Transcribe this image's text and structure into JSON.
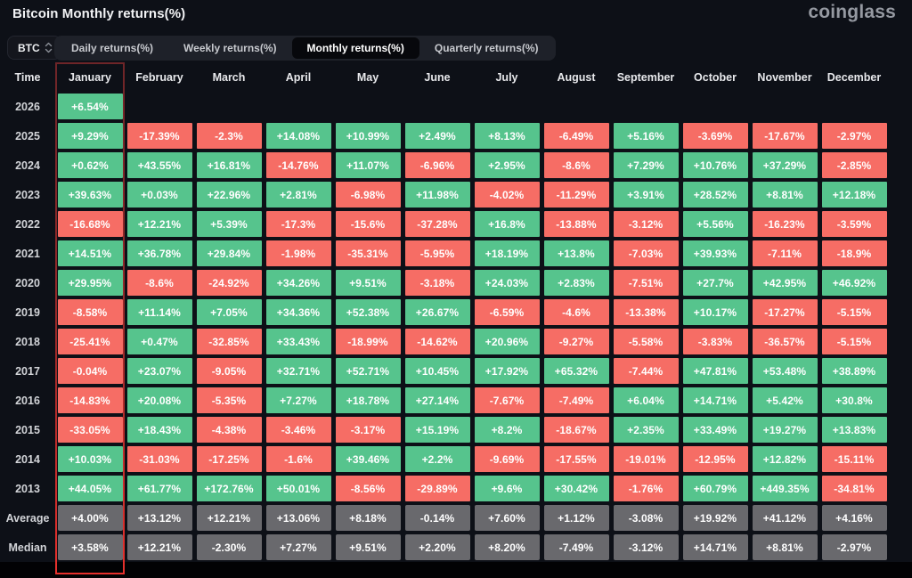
{
  "page": {
    "title": "Bitcoin Monthly returns(%)",
    "brand": "coinglass"
  },
  "controls": {
    "symbol_select": "BTC",
    "symbol_sort_icon": "up-down-chevrons",
    "tabs": [
      {
        "label": "Daily returns(%)",
        "active": false
      },
      {
        "label": "Weekly returns(%)",
        "active": false
      },
      {
        "label": "Monthly returns(%)",
        "active": true
      },
      {
        "label": "Quarterly returns(%)",
        "active": false
      }
    ]
  },
  "colors": {
    "positive": "#56c48d",
    "negative": "#f66d65",
    "stat": "#69696d",
    "highlight_border": "#e8302c",
    "background": "#0d1017"
  },
  "table": {
    "time_label": "Time",
    "columns": [
      "January",
      "February",
      "March",
      "April",
      "May",
      "June",
      "July",
      "August",
      "September",
      "October",
      "November",
      "December"
    ],
    "highlighted_column": "January",
    "rows": [
      {
        "label": "2026",
        "type": "year",
        "values": [
          "+6.54%",
          null,
          null,
          null,
          null,
          null,
          null,
          null,
          null,
          null,
          null,
          null
        ]
      },
      {
        "label": "2025",
        "type": "year",
        "values": [
          "+9.29%",
          "-17.39%",
          "-2.3%",
          "+14.08%",
          "+10.99%",
          "+2.49%",
          "+8.13%",
          "-6.49%",
          "+5.16%",
          "-3.69%",
          "-17.67%",
          "-2.97%"
        ]
      },
      {
        "label": "2024",
        "type": "year",
        "values": [
          "+0.62%",
          "+43.55%",
          "+16.81%",
          "-14.76%",
          "+11.07%",
          "-6.96%",
          "+2.95%",
          "-8.6%",
          "+7.29%",
          "+10.76%",
          "+37.29%",
          "-2.85%"
        ]
      },
      {
        "label": "2023",
        "type": "year",
        "values": [
          "+39.63%",
          "+0.03%",
          "+22.96%",
          "+2.81%",
          "-6.98%",
          "+11.98%",
          "-4.02%",
          "-11.29%",
          "+3.91%",
          "+28.52%",
          "+8.81%",
          "+12.18%"
        ]
      },
      {
        "label": "2022",
        "type": "year",
        "values": [
          "-16.68%",
          "+12.21%",
          "+5.39%",
          "-17.3%",
          "-15.6%",
          "-37.28%",
          "+16.8%",
          "-13.88%",
          "-3.12%",
          "+5.56%",
          "-16.23%",
          "-3.59%"
        ]
      },
      {
        "label": "2021",
        "type": "year",
        "values": [
          "+14.51%",
          "+36.78%",
          "+29.84%",
          "-1.98%",
          "-35.31%",
          "-5.95%",
          "+18.19%",
          "+13.8%",
          "-7.03%",
          "+39.93%",
          "-7.11%",
          "-18.9%"
        ]
      },
      {
        "label": "2020",
        "type": "year",
        "values": [
          "+29.95%",
          "-8.6%",
          "-24.92%",
          "+34.26%",
          "+9.51%",
          "-3.18%",
          "+24.03%",
          "+2.83%",
          "-7.51%",
          "+27.7%",
          "+42.95%",
          "+46.92%"
        ]
      },
      {
        "label": "2019",
        "type": "year",
        "values": [
          "-8.58%",
          "+11.14%",
          "+7.05%",
          "+34.36%",
          "+52.38%",
          "+26.67%",
          "-6.59%",
          "-4.6%",
          "-13.38%",
          "+10.17%",
          "-17.27%",
          "-5.15%"
        ]
      },
      {
        "label": "2018",
        "type": "year",
        "values": [
          "-25.41%",
          "+0.47%",
          "-32.85%",
          "+33.43%",
          "-18.99%",
          "-14.62%",
          "+20.96%",
          "-9.27%",
          "-5.58%",
          "-3.83%",
          "-36.57%",
          "-5.15%"
        ]
      },
      {
        "label": "2017",
        "type": "year",
        "values": [
          "-0.04%",
          "+23.07%",
          "-9.05%",
          "+32.71%",
          "+52.71%",
          "+10.45%",
          "+17.92%",
          "+65.32%",
          "-7.44%",
          "+47.81%",
          "+53.48%",
          "+38.89%"
        ]
      },
      {
        "label": "2016",
        "type": "year",
        "values": [
          "-14.83%",
          "+20.08%",
          "-5.35%",
          "+7.27%",
          "+18.78%",
          "+27.14%",
          "-7.67%",
          "-7.49%",
          "+6.04%",
          "+14.71%",
          "+5.42%",
          "+30.8%"
        ]
      },
      {
        "label": "2015",
        "type": "year",
        "values": [
          "-33.05%",
          "+18.43%",
          "-4.38%",
          "-3.46%",
          "-3.17%",
          "+15.19%",
          "+8.2%",
          "-18.67%",
          "+2.35%",
          "+33.49%",
          "+19.27%",
          "+13.83%"
        ]
      },
      {
        "label": "2014",
        "type": "year",
        "values": [
          "+10.03%",
          "-31.03%",
          "-17.25%",
          "-1.6%",
          "+39.46%",
          "+2.2%",
          "-9.69%",
          "-17.55%",
          "-19.01%",
          "-12.95%",
          "+12.82%",
          "-15.11%"
        ]
      },
      {
        "label": "2013",
        "type": "year",
        "values": [
          "+44.05%",
          "+61.77%",
          "+172.76%",
          "+50.01%",
          "-8.56%",
          "-29.89%",
          "+9.6%",
          "+30.42%",
          "-1.76%",
          "+60.79%",
          "+449.35%",
          "-34.81%"
        ]
      },
      {
        "label": "Average",
        "type": "stat",
        "values": [
          "+4.00%",
          "+13.12%",
          "+12.21%",
          "+13.06%",
          "+8.18%",
          "-0.14%",
          "+7.60%",
          "+1.12%",
          "-3.08%",
          "+19.92%",
          "+41.12%",
          "+4.16%"
        ]
      },
      {
        "label": "Median",
        "type": "stat",
        "values": [
          "+3.58%",
          "+12.21%",
          "-2.30%",
          "+7.27%",
          "+9.51%",
          "+2.20%",
          "+8.20%",
          "-7.49%",
          "-3.12%",
          "+14.71%",
          "+8.81%",
          "-2.97%"
        ]
      }
    ]
  },
  "chart_data": {
    "type": "heatmap",
    "title": "Bitcoin Monthly returns(%)",
    "x_categories": [
      "January",
      "February",
      "March",
      "April",
      "May",
      "June",
      "July",
      "August",
      "September",
      "October",
      "November",
      "December"
    ],
    "y_categories": [
      "2026",
      "2025",
      "2024",
      "2023",
      "2022",
      "2021",
      "2020",
      "2019",
      "2018",
      "2017",
      "2016",
      "2015",
      "2014",
      "2013",
      "Average",
      "Median"
    ],
    "values_pct": [
      [
        6.54,
        null,
        null,
        null,
        null,
        null,
        null,
        null,
        null,
        null,
        null,
        null
      ],
      [
        9.29,
        -17.39,
        -2.3,
        14.08,
        10.99,
        2.49,
        8.13,
        -6.49,
        5.16,
        -3.69,
        -17.67,
        -2.97
      ],
      [
        0.62,
        43.55,
        16.81,
        -14.76,
        11.07,
        -6.96,
        2.95,
        -8.6,
        7.29,
        10.76,
        37.29,
        -2.85
      ],
      [
        39.63,
        0.03,
        22.96,
        2.81,
        -6.98,
        11.98,
        -4.02,
        -11.29,
        3.91,
        28.52,
        8.81,
        12.18
      ],
      [
        -16.68,
        12.21,
        5.39,
        -17.3,
        -15.6,
        -37.28,
        16.8,
        -13.88,
        -3.12,
        5.56,
        -16.23,
        -3.59
      ],
      [
        14.51,
        36.78,
        29.84,
        -1.98,
        -35.31,
        -5.95,
        18.19,
        13.8,
        -7.03,
        39.93,
        -7.11,
        -18.9
      ],
      [
        29.95,
        -8.6,
        -24.92,
        34.26,
        9.51,
        -3.18,
        24.03,
        2.83,
        -7.51,
        27.7,
        42.95,
        46.92
      ],
      [
        -8.58,
        11.14,
        7.05,
        34.36,
        52.38,
        26.67,
        -6.59,
        -4.6,
        -13.38,
        10.17,
        -17.27,
        -5.15
      ],
      [
        -25.41,
        0.47,
        -32.85,
        33.43,
        -18.99,
        -14.62,
        20.96,
        -9.27,
        -5.58,
        -3.83,
        -36.57,
        -5.15
      ],
      [
        -0.04,
        23.07,
        -9.05,
        32.71,
        52.71,
        10.45,
        17.92,
        65.32,
        -7.44,
        47.81,
        53.48,
        38.89
      ],
      [
        -14.83,
        20.08,
        -5.35,
        7.27,
        18.78,
        27.14,
        -7.67,
        -7.49,
        6.04,
        14.71,
        5.42,
        30.8
      ],
      [
        -33.05,
        18.43,
        -4.38,
        -3.46,
        -3.17,
        15.19,
        8.2,
        -18.67,
        2.35,
        33.49,
        19.27,
        13.83
      ],
      [
        10.03,
        -31.03,
        -17.25,
        -1.6,
        39.46,
        2.2,
        -9.69,
        -17.55,
        -19.01,
        -12.95,
        12.82,
        -15.11
      ],
      [
        44.05,
        61.77,
        172.76,
        50.01,
        -8.56,
        -29.89,
        9.6,
        30.42,
        -1.76,
        60.79,
        449.35,
        -34.81
      ],
      [
        4.0,
        13.12,
        12.21,
        13.06,
        8.18,
        -0.14,
        7.6,
        1.12,
        -3.08,
        19.92,
        41.12,
        4.16
      ],
      [
        3.58,
        12.21,
        -2.3,
        7.27,
        9.51,
        2.2,
        8.2,
        -7.49,
        -3.12,
        14.71,
        8.81,
        -2.97
      ]
    ],
    "legend": "green = positive return, red = negative return, gray = Average/Median summary rows",
    "highlighted_column": "January"
  }
}
